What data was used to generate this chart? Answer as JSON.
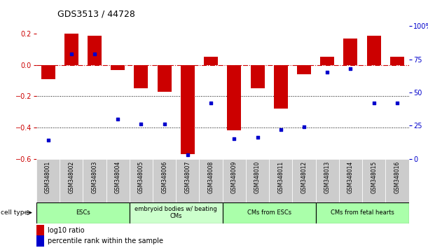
{
  "title": "GDS3513 / 44728",
  "samples": [
    "GSM348001",
    "GSM348002",
    "GSM348003",
    "GSM348004",
    "GSM348005",
    "GSM348006",
    "GSM348007",
    "GSM348008",
    "GSM348009",
    "GSM348010",
    "GSM348011",
    "GSM348012",
    "GSM348013",
    "GSM348014",
    "GSM348015",
    "GSM348016"
  ],
  "log10_ratio": [
    -0.09,
    0.2,
    0.19,
    -0.03,
    -0.15,
    -0.17,
    -0.57,
    0.055,
    -0.42,
    -0.15,
    -0.28,
    -0.06,
    0.055,
    0.17,
    0.19,
    0.055
  ],
  "percentile_rank": [
    14,
    79,
    79,
    30,
    26,
    26,
    3,
    42,
    15,
    16,
    22,
    24,
    65,
    68,
    42,
    42
  ],
  "bar_color": "#cc0000",
  "dot_color": "#0000cc",
  "zero_line_color": "#cc0000",
  "grid_color": "#000000",
  "cell_types": [
    {
      "label": "ESCs",
      "start": 0,
      "end": 3,
      "color": "#aaffaa"
    },
    {
      "label": "embryoid bodies w/ beating\nCMs",
      "start": 4,
      "end": 7,
      "color": "#ccffcc"
    },
    {
      "label": "CMs from ESCs",
      "start": 8,
      "end": 11,
      "color": "#aaffaa"
    },
    {
      "label": "CMs from fetal hearts",
      "start": 12,
      "end": 15,
      "color": "#aaffaa"
    }
  ],
  "ylim_left": [
    -0.6,
    0.25
  ],
  "ylim_right": [
    0,
    100
  ],
  "ylabel_left_ticks": [
    -0.6,
    -0.4,
    -0.2,
    0.0,
    0.2
  ],
  "ylabel_right_ticks": [
    0,
    25,
    50,
    75,
    100
  ],
  "ylabel_right_labels": [
    "0",
    "25",
    "50",
    "75",
    "100%"
  ],
  "bg_color": "#ffffff",
  "plot_bg_color": "#ffffff",
  "tick_label_color_left": "#cc0000",
  "tick_label_color_right": "#0000cc",
  "cell_type_label": "cell type",
  "legend_log10": "log10 ratio",
  "legend_percentile": "percentile rank within the sample",
  "sample_bg": "#cccccc"
}
